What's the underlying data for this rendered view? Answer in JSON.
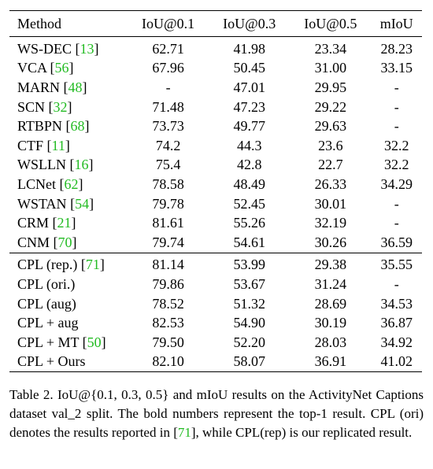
{
  "table": {
    "header": [
      "Method",
      "IoU@0.1",
      "IoU@0.3",
      "IoU@0.5",
      "mIoU"
    ],
    "groups": [
      [
        {
          "method": "WS-DEC",
          "ref": [
            "[",
            "13",
            "]"
          ],
          "cells": [
            "62.71",
            "41.98",
            "23.34",
            "28.23"
          ]
        },
        {
          "method": "VCA",
          "ref": [
            "[",
            "56",
            "]"
          ],
          "cells": [
            "67.96",
            "50.45",
            "31.00",
            "33.15"
          ]
        },
        {
          "method": "MARN",
          "ref": [
            "[",
            "48",
            "]"
          ],
          "cells": [
            "-",
            "47.01",
            "29.95",
            "-"
          ]
        },
        {
          "method": "SCN",
          "ref": [
            "[",
            "32",
            "]"
          ],
          "cells": [
            "71.48",
            "47.23",
            "29.22",
            "-"
          ]
        },
        {
          "method": "RTBPN",
          "ref": [
            "[",
            "68",
            "]"
          ],
          "cells": [
            "73.73",
            "49.77",
            "29.63",
            "-"
          ]
        },
        {
          "method": "CTF",
          "ref": [
            "[",
            "11",
            "]"
          ],
          "cells": [
            "74.2",
            "44.3",
            "23.6",
            "32.2"
          ]
        },
        {
          "method": "WSLLN",
          "ref": [
            "[",
            "16",
            "]"
          ],
          "cells": [
            "75.4",
            "42.8",
            "22.7",
            "32.2"
          ]
        },
        {
          "method": "LCNet",
          "ref": [
            "[",
            "62",
            "]"
          ],
          "cells": [
            "78.58",
            "48.49",
            "26.33",
            "34.29"
          ]
        },
        {
          "method": "WSTAN",
          "ref": [
            "[",
            "54",
            "]"
          ],
          "cells": [
            "79.78",
            "52.45",
            "30.01",
            "-"
          ]
        },
        {
          "method": "CRM",
          "ref": [
            "[",
            "21",
            "]"
          ],
          "cells": [
            "81.61",
            "55.26",
            "32.19",
            "-"
          ]
        },
        {
          "method": "CNM",
          "ref": [
            "[",
            "70",
            "]"
          ],
          "cells": [
            "79.74",
            "54.61",
            "30.26",
            "36.59"
          ]
        }
      ],
      [
        {
          "method": "CPL (rep.)",
          "ref": [
            "[",
            "71",
            "]"
          ],
          "cells": [
            "81.14",
            "53.99",
            "29.38",
            "35.55"
          ]
        },
        {
          "method": "CPL (ori.)",
          "cells": [
            "79.86",
            "53.67",
            "31.24",
            "-"
          ]
        },
        {
          "method": "CPL (aug)",
          "cells": [
            "78.52",
            "51.32",
            "28.69",
            "34.53"
          ]
        },
        {
          "method": "CPL + aug",
          "cells": [
            "82.53",
            "54.90",
            "30.19",
            "36.87"
          ],
          "bold": [
            0
          ]
        },
        {
          "method": "CPL + MT",
          "ref": [
            "[",
            "50",
            "]"
          ],
          "cells": [
            "79.50",
            "52.20",
            "28.03",
            "34.92"
          ]
        },
        {
          "method": "CPL + Ours",
          "cells": [
            "82.10",
            "58.07",
            "36.91",
            "41.02"
          ],
          "bold": [
            1,
            2,
            3
          ]
        }
      ]
    ]
  },
  "caption": {
    "label": "Table 2.",
    "parts": [
      "IoU@{0.1, 0.3, 0.5} and mIoU results on the ActivityNet Captions dataset val_2 split. The bold numbers represent the top-1 result. CPL (ori) denotes the results reported in [",
      "71",
      "], while CPL(rep) is our replicated result."
    ]
  }
}
